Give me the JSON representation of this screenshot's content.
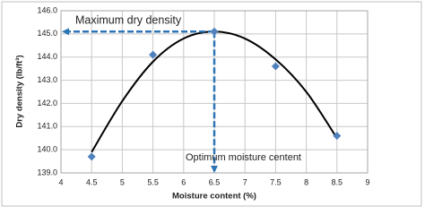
{
  "chart_data": {
    "type": "scatter",
    "x_label": "Moisture content (%)",
    "y_label": "Dry density (lb/ft³)",
    "series": [
      {
        "type": "scatter",
        "color": "#4f81bd",
        "x": [
          4.5,
          5.5,
          6.5,
          7.5,
          8.5
        ],
        "values": [
          139.7,
          144.1,
          145.1,
          143.6,
          140.6
        ]
      },
      {
        "type": "line",
        "color": "#000000",
        "x": [
          4.5,
          5,
          5.5,
          6,
          6.5,
          7,
          7.5,
          8,
          8.5
        ],
        "values": [
          139.9,
          142.1,
          143.8,
          144.8,
          145.1,
          144.8,
          143.9,
          142.5,
          140.5
        ]
      }
    ],
    "annotations": [
      {
        "text": "Maximum dry density"
      },
      {
        "text": "Optimum moisture centent"
      }
    ],
    "arrow_color": "#2e75b6",
    "xlim": [
      4,
      9
    ],
    "xticks": [
      4,
      4.5,
      5,
      5.5,
      6,
      6.5,
      7,
      7.5,
      8,
      8.5,
      9
    ],
    "ylim": [
      139,
      146
    ],
    "yticks": [
      {
        "value": 139,
        "label": "139.0"
      },
      {
        "value": 140,
        "label": "140.0"
      },
      {
        "value": 141,
        "label": "141.0"
      },
      {
        "value": 142,
        "label": "142.0"
      },
      {
        "value": 143,
        "label": "143.0"
      },
      {
        "value": 144,
        "label": "144.0"
      },
      {
        "value": 145,
        "label": "145.0"
      },
      {
        "value": 146,
        "label": "146.0"
      }
    ],
    "grid": true
  }
}
